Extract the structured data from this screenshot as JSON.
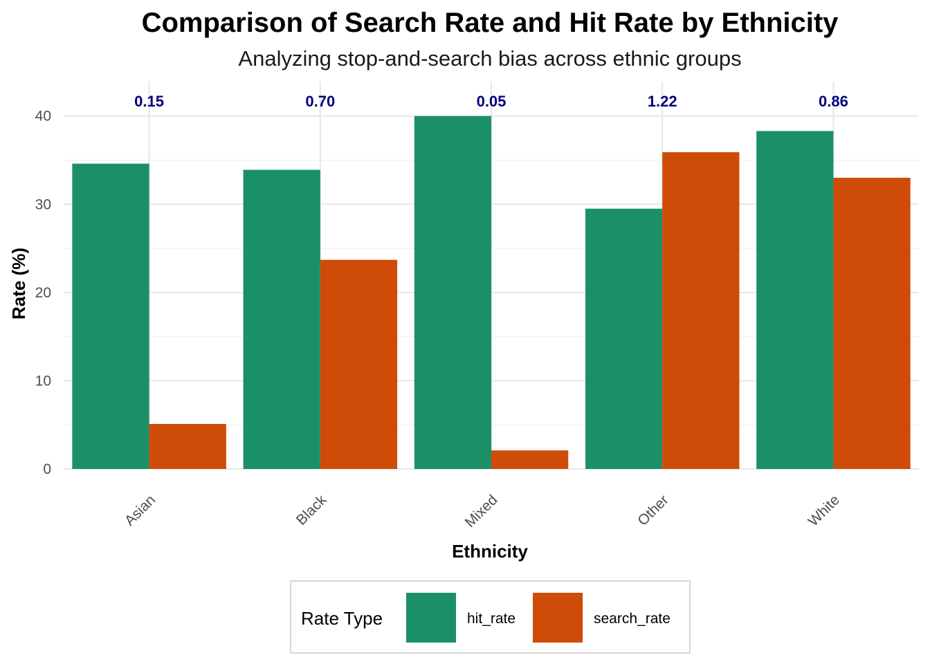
{
  "chart_data": {
    "type": "bar",
    "title": "Comparison of Search Rate and Hit Rate by Ethnicity",
    "subtitle": "Analyzing stop-and-search bias across ethnic groups",
    "xlabel": "Ethnicity",
    "ylabel": "Rate (%)",
    "categories": [
      "Asian",
      "Black",
      "Mixed",
      "Other",
      "White"
    ],
    "series": [
      {
        "name": "hit_rate",
        "color": "#1B9066",
        "values": [
          34.6,
          33.9,
          40.0,
          29.5,
          38.3
        ]
      },
      {
        "name": "search_rate",
        "color": "#CE4B08",
        "values": [
          5.1,
          23.7,
          2.1,
          35.9,
          33.0
        ]
      }
    ],
    "annotations": [
      "0.15",
      "0.70",
      "0.05",
      "1.22",
      "0.86"
    ],
    "annotation_color": "#00007F",
    "yticks": [
      0,
      10,
      20,
      30,
      40
    ],
    "ylim": [
      0,
      43.9
    ],
    "grid": true,
    "legend": {
      "title": "Rate Type",
      "position": "bottom"
    }
  }
}
